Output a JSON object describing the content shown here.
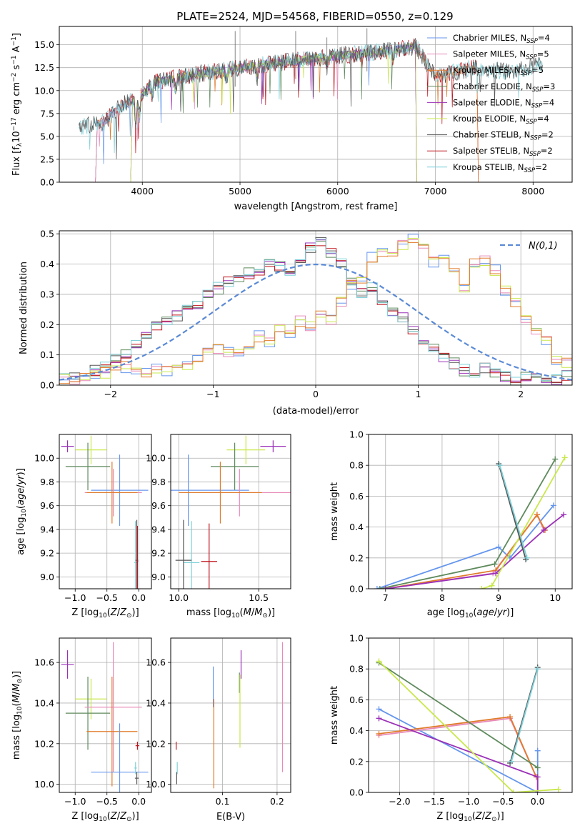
{
  "figure": {
    "title": "PLATE=2524, MJD=54568, FIBERID=0550, z=0.129"
  },
  "colors": {
    "Chabrier MILES": "#6495ed",
    "Salpeter MILES": "#e88ab8",
    "Kroupa MILES": "#e07b2a",
    "Chabrier ELODIE": "#5e8a5c",
    "Salpeter ELODIE": "#9b30b8",
    "Kroupa ELODIE": "#c8e84a",
    "Chabrier STELIB": "#555555",
    "Salpeter STELIB": "#c0141c",
    "Kroupa STELIB": "#7fd0d8"
  },
  "chart_data": [
    {
      "id": "spectrum",
      "type": "line",
      "xlabel": "wavelength [Angstrom, rest frame]",
      "ylabel": "Flux [f$_\\lambda$10$^{-17}$ erg cm$^{-2}$ s$^{-1}$ A$^{-1}$]",
      "ylabel_text": "Flux [fλ10−17 erg cm−2 s−1 A−1]",
      "xlim": [
        3150,
        8400
      ],
      "ylim": [
        0,
        17
      ],
      "xticks": [
        4000,
        5000,
        6000,
        7000,
        8000
      ],
      "yticks": [
        0.0,
        2.5,
        5.0,
        7.5,
        10.0,
        12.5,
        15.0
      ],
      "legend_loc": "right",
      "legend": [
        {
          "label": "Chabrier MILES, N_SSP=4",
          "pre": "Chabrier MILES, N",
          "sub": "SSP",
          "post": "=4"
        },
        {
          "label": "Salpeter MILES, N_SSP=5",
          "pre": "Salpeter MILES, N",
          "sub": "SSP",
          "post": "=5"
        },
        {
          "label": "Kroupa MILES, N_SSP=5",
          "pre": "Kroupa MILES, N",
          "sub": "SSP",
          "post": "=5"
        },
        {
          "label": "Chabrier ELODIE, N_SSP=3",
          "pre": "Chabrier ELODIE, N",
          "sub": "SSP",
          "post": "=3"
        },
        {
          "label": "Salpeter ELODIE, N_SSP=4",
          "pre": "Salpeter ELODIE, N",
          "sub": "SSP",
          "post": "=4"
        },
        {
          "label": "Kroupa ELODIE, N_SSP=4",
          "pre": "Kroupa ELODIE, N",
          "sub": "SSP",
          "post": "=4"
        },
        {
          "label": "Chabrier STELIB, N_SSP=2",
          "pre": "Chabrier STELIB, N",
          "sub": "SSP",
          "post": "=2"
        },
        {
          "label": "Salpeter STELIB, N_SSP=2",
          "pre": "Salpeter STELIB, N",
          "sub": "SSP",
          "post": "=2"
        },
        {
          "label": "Kroupa STELIB, N_SSP=2",
          "pre": "Kroupa STELIB, N",
          "sub": "SSP",
          "post": "=2"
        }
      ],
      "continuum_anchors": {
        "x": [
          3350,
          3600,
          3800,
          3950,
          4100,
          4400,
          4800,
          5200,
          5600,
          6000,
          6400,
          6800,
          7000,
          7400,
          7800,
          8100
        ],
        "y": [
          6.0,
          6.5,
          8.5,
          9.0,
          10.8,
          11.5,
          12.2,
          12.8,
          13.3,
          13.8,
          14.2,
          14.8,
          11.5,
          12.5,
          12.0,
          13.0
        ]
      },
      "series_ranges": {
        "Chabrier MILES": [
          3540,
          6800
        ],
        "Salpeter MILES": [
          3540,
          6800
        ],
        "Kroupa MILES": [
          3540,
          7430
        ],
        "Chabrier ELODIE": [
          3900,
          6800
        ],
        "Salpeter ELODIE": [
          3900,
          6800
        ],
        "Kroupa ELODIE": [
          3900,
          6800
        ],
        "Chabrier STELIB": [
          3350,
          8100
        ],
        "Salpeter STELIB": [
          3540,
          7430
        ],
        "Kroupa STELIB": [
          3350,
          8100
        ]
      }
    },
    {
      "id": "residuals",
      "type": "step",
      "xlabel": "(data-model)/error",
      "ylabel": "Normed distribution",
      "xlim": [
        -2.5,
        2.5
      ],
      "ylim": [
        0,
        0.51
      ],
      "xticks": [
        -2,
        -1,
        0,
        1,
        2
      ],
      "yticks": [
        0.0,
        0.1,
        0.2,
        0.3,
        0.4,
        0.5
      ],
      "legend": "N(0,1)",
      "legend_loc": "upper right",
      "bin_edges_start": -2.5,
      "bin_width": 0.1,
      "group_a": [
        0.02,
        0.02,
        0.03,
        0.04,
        0.04,
        0.05,
        0.06,
        0.05,
        0.04,
        0.06,
        0.05,
        0.05,
        0.07,
        0.08,
        0.11,
        0.12,
        0.11,
        0.1,
        0.12,
        0.16,
        0.14,
        0.19,
        0.17,
        0.21,
        0.2,
        0.24,
        0.22,
        0.28,
        0.33,
        0.34,
        0.42,
        0.44,
        0.43,
        0.46,
        0.48,
        0.47,
        0.41,
        0.42,
        0.38,
        0.32,
        0.4,
        0.41,
        0.38,
        0.31,
        0.27,
        0.22,
        0.18,
        0.15,
        0.08,
        0.07
      ],
      "group_b": [
        0.02,
        0.03,
        0.03,
        0.05,
        0.06,
        0.09,
        0.1,
        0.14,
        0.17,
        0.2,
        0.22,
        0.23,
        0.25,
        0.27,
        0.3,
        0.32,
        0.34,
        0.36,
        0.37,
        0.38,
        0.4,
        0.39,
        0.38,
        0.42,
        0.45,
        0.47,
        0.44,
        0.4,
        0.35,
        0.3,
        0.32,
        0.28,
        0.24,
        0.22,
        0.18,
        0.14,
        0.12,
        0.09,
        0.07,
        0.05,
        0.04,
        0.06,
        0.04,
        0.03,
        0.02,
        0.03,
        0.02,
        0.01,
        0.02,
        0.03
      ],
      "gaussian": {
        "mean": 0,
        "sigma": 1,
        "line": "dashed"
      }
    },
    {
      "id": "age_vs_Z",
      "type": "errorbar",
      "xlabel": "Z [log10(Z/Z⊙)]",
      "ylabel": "age  [log10(age/yr)]",
      "xlim": [
        -1.25,
        0.2
      ],
      "ylim": [
        8.9,
        10.2
      ],
      "xticks": [
        -1.0,
        -0.5,
        0.0
      ],
      "xticklabels": [
        "−1.0",
        "−0.5",
        "0.0"
      ],
      "yticks": [
        9.0,
        9.2,
        9.4,
        9.6,
        9.8,
        10.0
      ],
      "points": [
        {
          "s": "Salpeter ELODIE",
          "x": -1.12,
          "y": 10.1,
          "xe": 0.1,
          "ye": 0.05
        },
        {
          "s": "Kroupa ELODIE",
          "x": -0.75,
          "y": 10.07,
          "xe": 0.25,
          "ye": 0.12
        },
        {
          "s": "Chabrier ELODIE",
          "x": -0.8,
          "y": 9.93,
          "xe": 0.35,
          "ye": 0.2
        },
        {
          "s": "Chabrier MILES",
          "x": -0.3,
          "y": 9.73,
          "xe": 0.45,
          "ye": 0.3
        },
        {
          "s": "Salpeter MILES",
          "x": -0.4,
          "y": 9.71,
          "xe": 0.45,
          "ye": 0.2
        },
        {
          "s": "Kroupa MILES",
          "x": -0.42,
          "y": 9.71,
          "xe": 0.4,
          "ye": 0.26
        },
        {
          "s": "Kroupa STELIB",
          "x": -0.05,
          "y": 9.12,
          "xe": 0.02,
          "ye": 0.35
        },
        {
          "s": "Chabrier STELIB",
          "x": -0.03,
          "y": 9.14,
          "xe": 0.02,
          "ye": 0.34
        },
        {
          "s": "Salpeter STELIB",
          "x": -0.02,
          "y": 9.13,
          "xe": 0.01,
          "ye": 0.3
        }
      ]
    },
    {
      "id": "age_vs_mass",
      "type": "errorbar",
      "xlabel": "mass [log10(M/M⊙)]",
      "xlim": [
        9.95,
        10.7
      ],
      "ylim": [
        8.9,
        10.2
      ],
      "xticks": [
        10.0,
        10.5
      ],
      "yticks": [
        9.0,
        9.2,
        9.4,
        9.6,
        9.8,
        10.0
      ],
      "points": [
        {
          "s": "Salpeter ELODIE",
          "x": 10.59,
          "y": 10.1,
          "xe": 0.08,
          "ye": 0.05
        },
        {
          "s": "Kroupa ELODIE",
          "x": 10.42,
          "y": 10.07,
          "xe": 0.12,
          "ye": 0.12
        },
        {
          "s": "Chabrier ELODIE",
          "x": 10.35,
          "y": 9.93,
          "xe": 0.15,
          "ye": 0.2
        },
        {
          "s": "Chabrier MILES",
          "x": 10.06,
          "y": 9.73,
          "xe": 0.38,
          "ye": 0.3
        },
        {
          "s": "Salpeter MILES",
          "x": 10.38,
          "y": 9.71,
          "xe": 0.35,
          "ye": 0.2
        },
        {
          "s": "Kroupa MILES",
          "x": 10.26,
          "y": 9.71,
          "xe": 0.26,
          "ye": 0.26
        },
        {
          "s": "Kroupa STELIB",
          "x": 10.08,
          "y": 9.12,
          "xe": 0.05,
          "ye": 0.35
        },
        {
          "s": "Chabrier STELIB",
          "x": 10.03,
          "y": 9.14,
          "xe": 0.05,
          "ye": 0.34
        },
        {
          "s": "Salpeter STELIB",
          "x": 10.19,
          "y": 9.13,
          "xe": 0.05,
          "ye": 0.32
        }
      ]
    },
    {
      "id": "weight_vs_age",
      "type": "line",
      "xlabel": "age  [log10(age/yr)]",
      "ylabel": "mass weight",
      "xlim": [
        6.7,
        10.3
      ],
      "ylim": [
        0,
        1.0
      ],
      "xticks": [
        7,
        8,
        9,
        10
      ],
      "yticks": [
        0.0,
        0.2,
        0.4,
        0.6,
        0.8,
        1.0
      ],
      "series": [
        {
          "name": "Chabrier MILES",
          "x": [
            6.85,
            9.0,
            9.2,
            9.97
          ],
          "y": [
            0.0,
            0.27,
            0.2,
            0.54
          ]
        },
        {
          "name": "Salpeter MILES",
          "x": [
            7.0,
            8.9,
            9.68,
            9.8
          ],
          "y": [
            0.0,
            0.1,
            0.48,
            0.38
          ]
        },
        {
          "name": "Kroupa MILES",
          "x": [
            7.0,
            8.95,
            9.68,
            9.82
          ],
          "y": [
            0.0,
            0.12,
            0.48,
            0.38
          ]
        },
        {
          "name": "Chabrier ELODIE",
          "x": [
            6.9,
            8.93,
            10.0
          ],
          "y": [
            0.0,
            0.16,
            0.84
          ]
        },
        {
          "name": "Salpeter ELODIE",
          "x": [
            7.0,
            8.95,
            9.8,
            10.15
          ],
          "y": [
            0.0,
            0.1,
            0.38,
            0.48
          ]
        },
        {
          "name": "Kroupa ELODIE",
          "x": [
            8.7,
            8.88,
            10.17
          ],
          "y": [
            0.0,
            0.02,
            0.85
          ]
        },
        {
          "name": "Chabrier STELIB",
          "x": [
            9.0,
            9.48
          ],
          "y": [
            0.81,
            0.19
          ]
        },
        {
          "name": "Kroupa STELIB",
          "x": [
            9.02,
            9.5
          ],
          "y": [
            0.8,
            0.2
          ]
        }
      ]
    },
    {
      "id": "mass_vs_Z",
      "type": "errorbar",
      "xlabel": "Z [log10(Z/Z⊙)]",
      "ylabel": "mass [log10(M/M⊙)]",
      "xlim": [
        -1.25,
        0.2
      ],
      "ylim": [
        9.96,
        10.72
      ],
      "xticks": [
        -1.0,
        -0.5,
        0.0
      ],
      "xticklabels": [
        "−1.0",
        "−0.5",
        "0.0"
      ],
      "yticks": [
        10.0,
        10.2,
        10.4,
        10.6
      ],
      "points": [
        {
          "s": "Salpeter ELODIE",
          "x": -1.12,
          "y": 10.59,
          "xe": 0.1,
          "ye": 0.07
        },
        {
          "s": "Kroupa ELODIE",
          "x": -0.75,
          "y": 10.42,
          "xe": 0.25,
          "ye": 0.1
        },
        {
          "s": "Chabrier ELODIE",
          "x": -0.8,
          "y": 10.35,
          "xe": 0.35,
          "ye": 0.18
        },
        {
          "s": "Salpeter MILES",
          "x": -0.4,
          "y": 10.38,
          "xe": 0.45,
          "ye": 0.32
        },
        {
          "s": "Kroupa MILES",
          "x": -0.42,
          "y": 10.26,
          "xe": 0.4,
          "ye": 0.27
        },
        {
          "s": "Chabrier MILES",
          "x": -0.3,
          "y": 10.06,
          "xe": 0.45,
          "ye": 0.24
        },
        {
          "s": "Salpeter STELIB",
          "x": -0.02,
          "y": 10.19,
          "xe": 0.03,
          "ye": 0.02
        },
        {
          "s": "Kroupa STELIB",
          "x": -0.05,
          "y": 10.08,
          "xe": 0.02,
          "ye": 0.03
        },
        {
          "s": "Chabrier STELIB",
          "x": -0.03,
          "y": 10.03,
          "xe": 0.03,
          "ye": 0.03
        }
      ]
    },
    {
      "id": "mass_vs_EBV",
      "type": "errorbar",
      "xlabel": "E(B-V)",
      "xlim": [
        0.005,
        0.225
      ],
      "ylim": [
        9.96,
        10.72
      ],
      "xticks": [
        0.1,
        0.2
      ],
      "yticks": [
        10.0,
        10.2,
        10.4,
        10.6
      ],
      "points": [
        {
          "s": "Salpeter STELIB",
          "x": 0.015,
          "y": 10.19,
          "ye": 0.02
        },
        {
          "s": "Kroupa STELIB",
          "x": 0.017,
          "y": 10.08,
          "ye": 0.03
        },
        {
          "s": "Chabrier STELIB",
          "x": 0.016,
          "y": 10.03,
          "ye": 0.03
        },
        {
          "s": "Chabrier MILES",
          "x": 0.083,
          "y": 10.48,
          "ye": 0.1
        },
        {
          "s": "Kroupa MILES",
          "x": 0.084,
          "y": 10.2,
          "ye": 0.22
        },
        {
          "s": "Chabrier ELODIE",
          "x": 0.131,
          "y": 10.5,
          "ye": 0.05
        },
        {
          "s": "Kroupa ELODIE",
          "x": 0.132,
          "y": 10.36,
          "ye": 0.18
        },
        {
          "s": "Salpeter ELODIE",
          "x": 0.134,
          "y": 10.59,
          "ye": 0.07
        },
        {
          "s": "Salpeter MILES",
          "x": 0.21,
          "y": 10.38,
          "ye": 0.32
        }
      ]
    },
    {
      "id": "weight_vs_Z",
      "type": "line",
      "xlabel": "Z [log10(Z/Z⊙)]",
      "ylabel": "mass weight",
      "xlim": [
        -2.45,
        0.5
      ],
      "ylim": [
        0,
        1.0
      ],
      "xticks": [
        -2.0,
        -1.5,
        -1.0,
        -0.5,
        0.0
      ],
      "xticklabels": [
        "−2.0",
        "−1.5",
        "−1.0",
        "−0.5",
        "0.0"
      ],
      "yticks": [
        0.0,
        0.2,
        0.4,
        0.6,
        0.8,
        1.0
      ],
      "series": [
        {
          "name": "Chabrier MILES",
          "x": [
            -2.3,
            0.0,
            0.0
          ],
          "y": [
            0.54,
            0.0,
            0.27
          ]
        },
        {
          "name": "Salpeter MILES",
          "x": [
            -2.3,
            -0.4,
            -0.02
          ],
          "y": [
            0.37,
            0.48,
            0.1
          ]
        },
        {
          "name": "Kroupa MILES",
          "x": [
            -2.3,
            -0.4,
            -0.02
          ],
          "y": [
            0.38,
            0.49,
            0.1
          ]
        },
        {
          "name": "Chabrier ELODIE",
          "x": [
            -2.3,
            0.0
          ],
          "y": [
            0.84,
            0.16
          ]
        },
        {
          "name": "Salpeter ELODIE",
          "x": [
            -2.3,
            0.0,
            0.0
          ],
          "y": [
            0.48,
            0.1,
            0.0
          ]
        },
        {
          "name": "Kroupa ELODIE",
          "x": [
            -2.3,
            -0.35,
            0.3
          ],
          "y": [
            0.85,
            0.0,
            0.02
          ]
        },
        {
          "name": "Chabrier STELIB",
          "x": [
            -0.4,
            0.0
          ],
          "y": [
            0.19,
            0.81
          ]
        },
        {
          "name": "Kroupa STELIB",
          "x": [
            -0.38,
            0.0
          ],
          "y": [
            0.2,
            0.8
          ]
        }
      ]
    }
  ]
}
